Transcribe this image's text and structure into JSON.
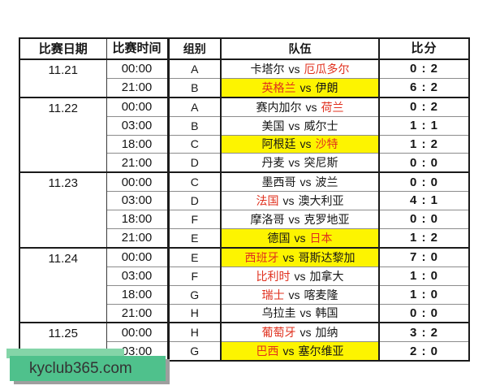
{
  "chart_data": {
    "type": "table",
    "columns": [
      "比赛日期",
      "比赛时间",
      "组别",
      "队伍",
      "比分"
    ],
    "vs_label": "vs",
    "groups": [
      {
        "date": "11.21",
        "matches": [
          {
            "time": "00:00",
            "group": "A",
            "home": "卡塔尔",
            "away": "厄瓜多尔",
            "red_team": "away",
            "highlight": false,
            "score": "0 : 2"
          },
          {
            "time": "21:00",
            "group": "B",
            "home": "英格兰",
            "away": "伊朗",
            "red_team": "home",
            "highlight": true,
            "score": "6 : 2"
          }
        ]
      },
      {
        "date": "11.22",
        "matches": [
          {
            "time": "00:00",
            "group": "A",
            "home": "赛内加尔",
            "away": "荷兰",
            "red_team": "away",
            "highlight": false,
            "score": "0 : 2"
          },
          {
            "time": "03:00",
            "group": "B",
            "home": "美国",
            "away": "威尔士",
            "red_team": null,
            "highlight": false,
            "score": "1 : 1"
          },
          {
            "time": "18:00",
            "group": "C",
            "home": "阿根廷",
            "away": "沙特",
            "red_team": "away",
            "highlight": true,
            "score": "1 : 2"
          },
          {
            "time": "21:00",
            "group": "D",
            "home": "丹麦",
            "away": "突尼斯",
            "red_team": null,
            "highlight": false,
            "score": "0 : 0"
          }
        ]
      },
      {
        "date": "11.23",
        "matches": [
          {
            "time": "00:00",
            "group": "C",
            "home": "墨西哥",
            "away": "波兰",
            "red_team": null,
            "highlight": false,
            "score": "0 : 0"
          },
          {
            "time": "03:00",
            "group": "D",
            "home": "法国",
            "away": "澳大利亚",
            "red_team": "home",
            "highlight": false,
            "score": "4 : 1"
          },
          {
            "time": "18:00",
            "group": "F",
            "home": "摩洛哥",
            "away": "克罗地亚",
            "red_team": null,
            "highlight": false,
            "score": "0 : 0"
          },
          {
            "time": "21:00",
            "group": "E",
            "home": "德国",
            "away": "日本",
            "red_team": "away",
            "highlight": true,
            "score": "1 : 2"
          }
        ]
      },
      {
        "date": "11.24",
        "matches": [
          {
            "time": "00:00",
            "group": "E",
            "home": "西班牙",
            "away": "哥斯达黎加",
            "red_team": "home",
            "highlight": true,
            "score": "7 : 0"
          },
          {
            "time": "03:00",
            "group": "F",
            "home": "比利时",
            "away": "加拿大",
            "red_team": "home",
            "highlight": false,
            "score": "1 : 0"
          },
          {
            "time": "18:00",
            "group": "G",
            "home": "瑞士",
            "away": "喀麦隆",
            "red_team": "home",
            "highlight": false,
            "score": "1 : 0"
          },
          {
            "time": "21:00",
            "group": "H",
            "home": "乌拉圭",
            "away": "韩国",
            "red_team": null,
            "highlight": false,
            "score": "0 : 0"
          }
        ]
      },
      {
        "date": "11.25",
        "matches": [
          {
            "time": "00:00",
            "group": "H",
            "home": "葡萄牙",
            "away": "加纳",
            "red_team": "home",
            "highlight": false,
            "score": "3 : 2"
          },
          {
            "time": "03:00",
            "group": "G",
            "home": "巴西",
            "away": "塞尔维亚",
            "red_team": "home",
            "highlight": true,
            "score": "2 : 0"
          }
        ]
      }
    ]
  },
  "watermark": {
    "text": "kyclub365.com"
  },
  "colors": {
    "highlight_yellow": "#fdf400",
    "winner_red": "#e0301e",
    "banner_green": "#4fc18c",
    "banner_strip_green": "#84d5a8",
    "banner_shadow_gray": "#9e9e9e",
    "border_dark": "#1b1b1b",
    "border_light": "#8c8c8c"
  }
}
